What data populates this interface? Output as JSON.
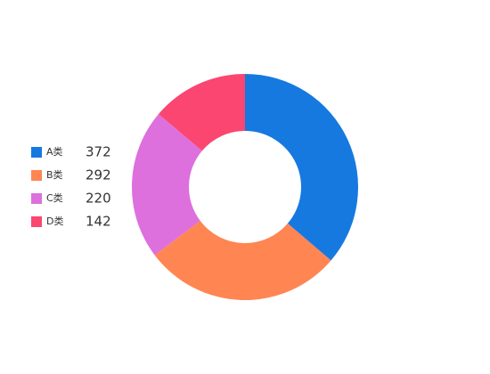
{
  "chart_data": {
    "type": "donut",
    "categories": [
      "A类",
      "B类",
      "C类",
      "D类"
    ],
    "values": [
      372,
      292,
      220,
      142
    ],
    "colors": [
      "#1679e0",
      "#ff8553",
      "#dd70dd",
      "#fa4670"
    ],
    "legend": "left"
  }
}
